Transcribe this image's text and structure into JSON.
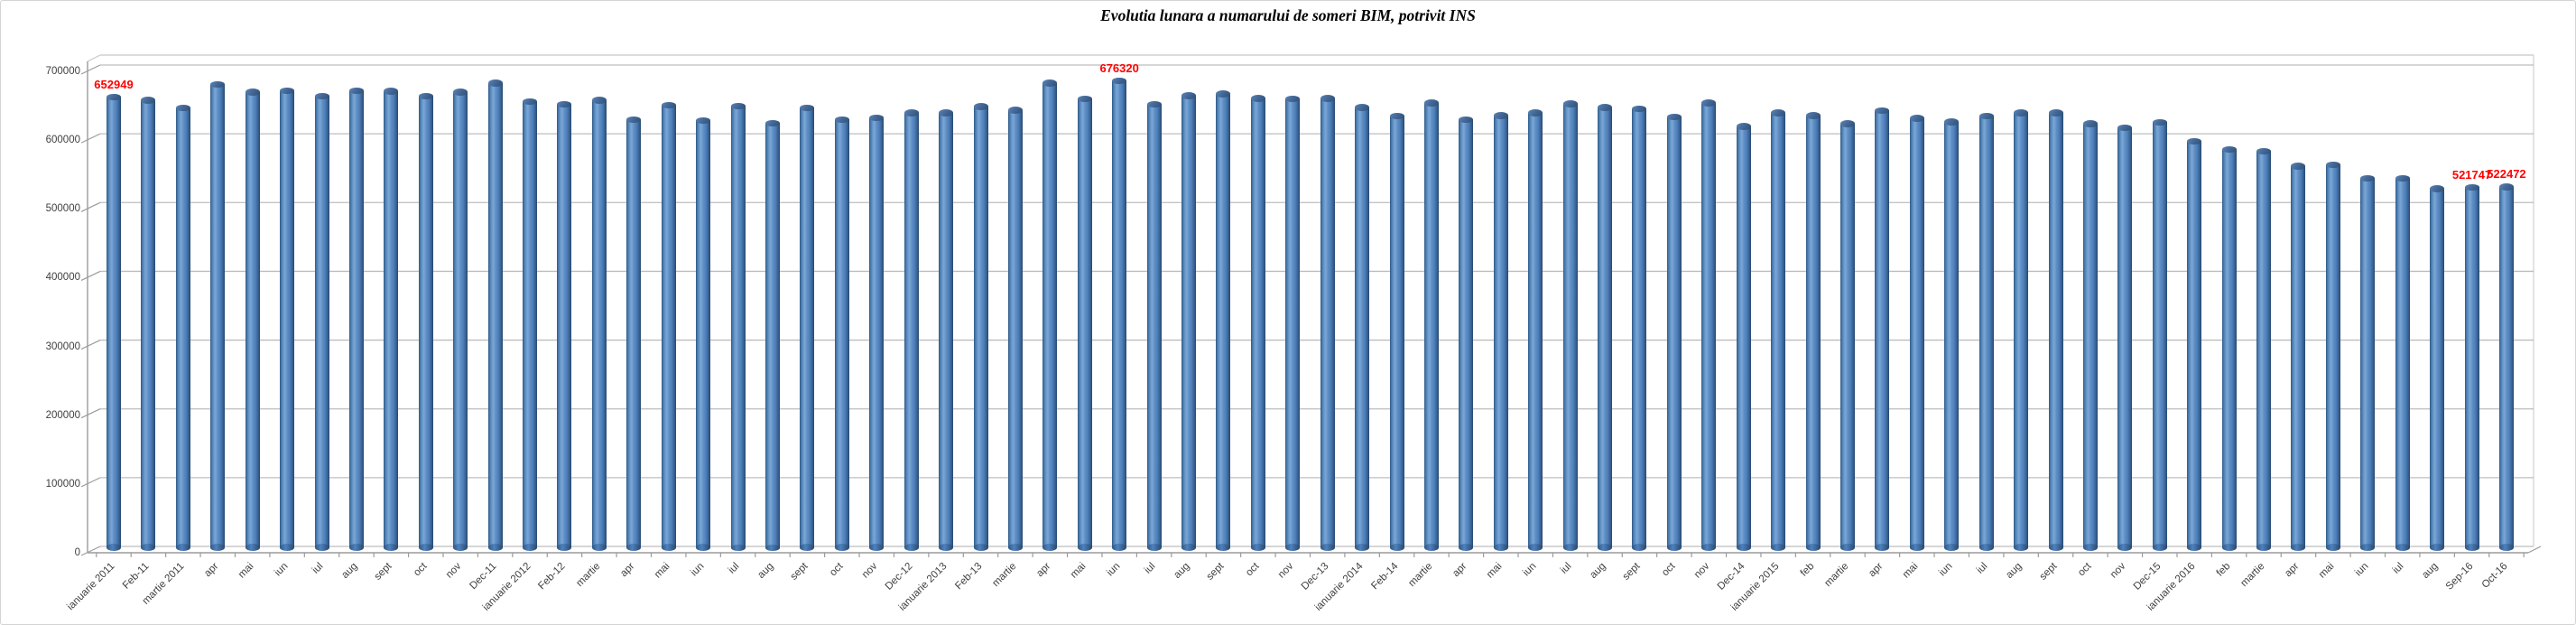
{
  "title": "Evolutia lunara a numarului de someri BIM, potrivit INS",
  "chart_data": {
    "type": "bar",
    "title": "Evolutia lunara a numarului de someri BIM, potrivit INS",
    "xlabel": "",
    "ylabel": "",
    "ylim": [
      0,
      700000
    ],
    "yticks": [
      0,
      100000,
      200000,
      300000,
      400000,
      500000,
      600000,
      700000
    ],
    "grid": true,
    "legend": "none",
    "bar_color": "#4f81bd",
    "data_label_color": "#ff0000",
    "categories": [
      "ianuarie 2011",
      "Feb-11",
      "martie 2011",
      "apr",
      "mai",
      "iun",
      "iul",
      "aug",
      "sept",
      "oct",
      "nov",
      "Dec-11",
      "ianuarie 2012",
      "Feb-12",
      "martie",
      "apr",
      "mai",
      "iun",
      "iul",
      "aug",
      "sept",
      "oct",
      "nov",
      "Dec-12",
      "ianuarie 2013",
      "Feb-13",
      "martie",
      "apr",
      "mai",
      "iun",
      "iul",
      "aug",
      "sept",
      "oct",
      "nov",
      "Dec-13",
      "ianuarie 2014",
      "Feb-14",
      "martie",
      "apr",
      "mai",
      "iun",
      "iul",
      "aug",
      "sept",
      "oct",
      "nov",
      "Dec-14",
      "ianuarie 2015",
      "feb",
      "martie",
      "apr",
      "mai",
      "iun",
      "iul",
      "aug",
      "sept",
      "oct",
      "nov",
      "Dec-15",
      "ianuarie 2016",
      "feb",
      "martie",
      "apr",
      "mai",
      "iun",
      "iul",
      "aug",
      "Sep-16",
      "Oct-16"
    ],
    "values": [
      652949,
      648000,
      637000,
      671000,
      660000,
      662000,
      654000,
      662000,
      661000,
      654000,
      660000,
      673000,
      646000,
      642000,
      648000,
      620000,
      641000,
      619000,
      640000,
      615000,
      637000,
      620000,
      623000,
      630000,
      630000,
      639000,
      634000,
      673000,
      650000,
      676320,
      642000,
      655000,
      657000,
      651000,
      650000,
      651000,
      638000,
      625000,
      644000,
      620000,
      626000,
      630000,
      643000,
      638000,
      636000,
      624000,
      644000,
      610000,
      630000,
      626000,
      614000,
      633000,
      622000,
      617000,
      625000,
      630000,
      630000,
      614000,
      608000,
      616000,
      589000,
      577000,
      574000,
      553000,
      555000,
      535000,
      535000,
      520000,
      521747,
      522472
    ],
    "data_labels": [
      {
        "index": 0,
        "text": "652949"
      },
      {
        "index": 29,
        "text": "676320"
      },
      {
        "index": 68,
        "text": "521747"
      },
      {
        "index": 69,
        "text": "522472"
      }
    ]
  }
}
